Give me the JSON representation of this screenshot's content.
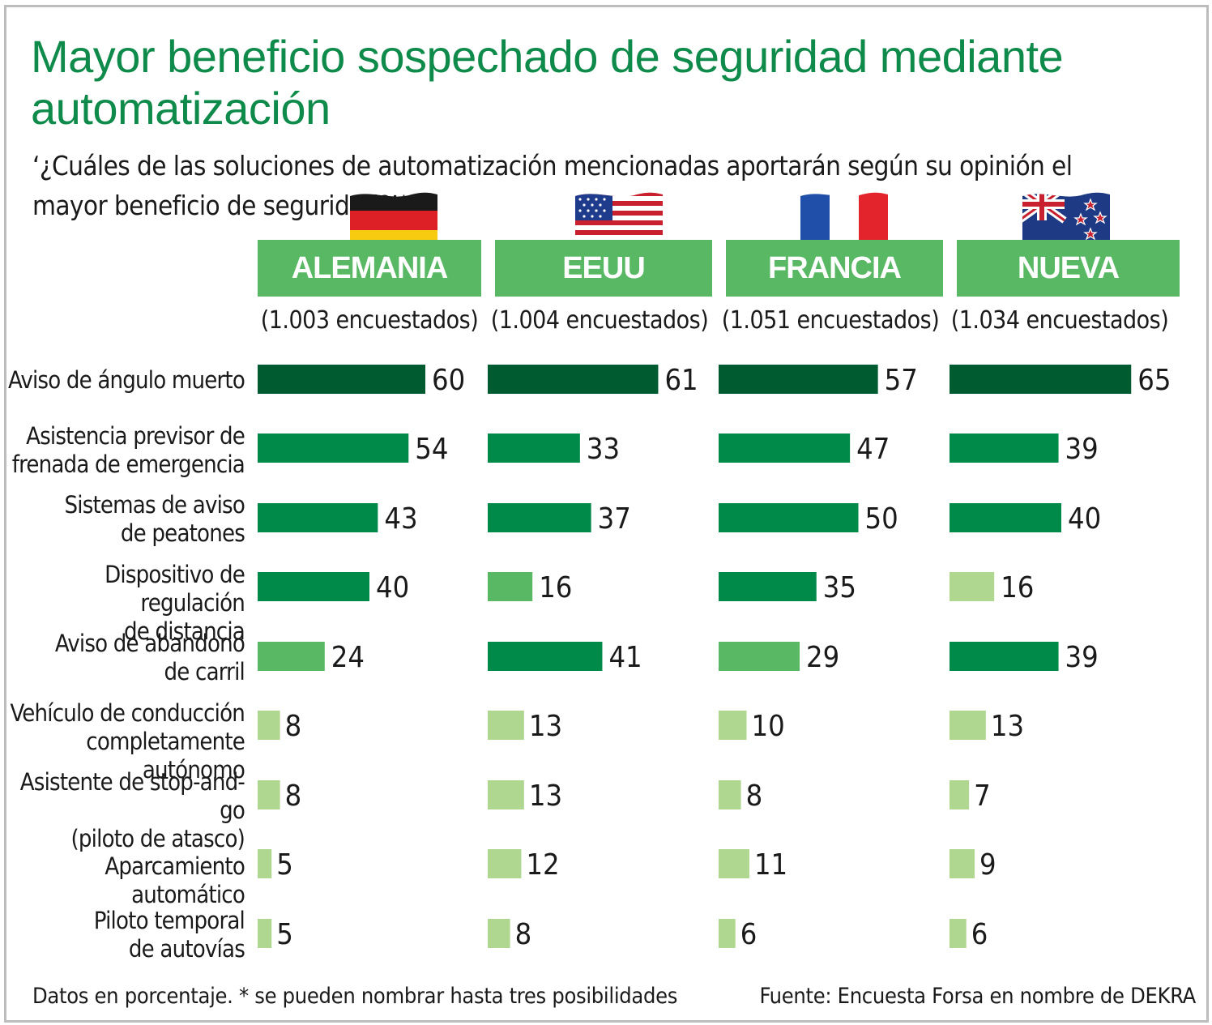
{
  "title": "Mayor beneficio sospechado de seguridad mediante automatización",
  "question": "‘¿Cuáles de las soluciones de automatización mencionadas aportarán según su opinión el mayor beneficio de seguridad?’*",
  "colors": {
    "title": "#0e8a4a",
    "header": "#58b863",
    "dark": "#005c30",
    "mid": "#008a4a",
    "light": "#58b863",
    "pale": "#b0d78f"
  },
  "chart_data": {
    "type": "bar",
    "orientation": "horizontal",
    "title": "Mayor beneficio sospechado de seguridad mediante automatización",
    "unit": "Datos en porcentaje",
    "categories": [
      "Aviso de ángulo muerto",
      "Asistencia previsor de\nfrenada de emergencia",
      "Sistemas de aviso\nde peatones",
      "Dispositivo de regulación\nde distancia",
      "Aviso de abandono\nde carril",
      "Vehículo de conducción\ncompletamente autónomo",
      "Asistente de stop-and-go\n(piloto de atasco)",
      "Aparcamiento automático",
      "Piloto temporal\nde autovías"
    ],
    "series": [
      {
        "name": "ALEMANIA",
        "respondents": "(1.003 encuestados)",
        "flag": "germany-flag",
        "values": [
          60,
          54,
          43,
          40,
          24,
          8,
          8,
          5,
          5
        ],
        "shades": [
          "dark",
          "mid",
          "mid",
          "mid",
          "light",
          "pale",
          "pale",
          "pale",
          "pale"
        ]
      },
      {
        "name": "EEUU",
        "respondents": "(1.004 encuestados)",
        "flag": "usa-flag",
        "values": [
          61,
          33,
          37,
          16,
          41,
          13,
          13,
          12,
          8
        ],
        "shades": [
          "dark",
          "mid",
          "mid",
          "light",
          "mid",
          "pale",
          "pale",
          "pale",
          "pale"
        ]
      },
      {
        "name": "FRANCIA",
        "respondents": "(1.051 encuestados)",
        "flag": "france-flag",
        "values": [
          57,
          47,
          50,
          35,
          29,
          10,
          8,
          11,
          6
        ],
        "shades": [
          "dark",
          "mid",
          "mid",
          "mid",
          "light",
          "pale",
          "pale",
          "pale",
          "pale"
        ]
      },
      {
        "name": "NUEVA ZELANDA",
        "respondents": "(1.034 encuestados)",
        "flag": "new-zealand-flag",
        "values": [
          65,
          39,
          40,
          16,
          39,
          13,
          7,
          9,
          6
        ],
        "shades": [
          "dark",
          "mid",
          "mid",
          "pale",
          "mid",
          "pale",
          "pale",
          "pale",
          "pale"
        ]
      }
    ],
    "xlim": [
      0,
      100
    ]
  },
  "footer": {
    "note": "Datos en porcentaje. * se pueden nombrar hasta tres posibilidades",
    "source": "Fuente: Encuesta Forsa en nombre de DEKRA"
  }
}
